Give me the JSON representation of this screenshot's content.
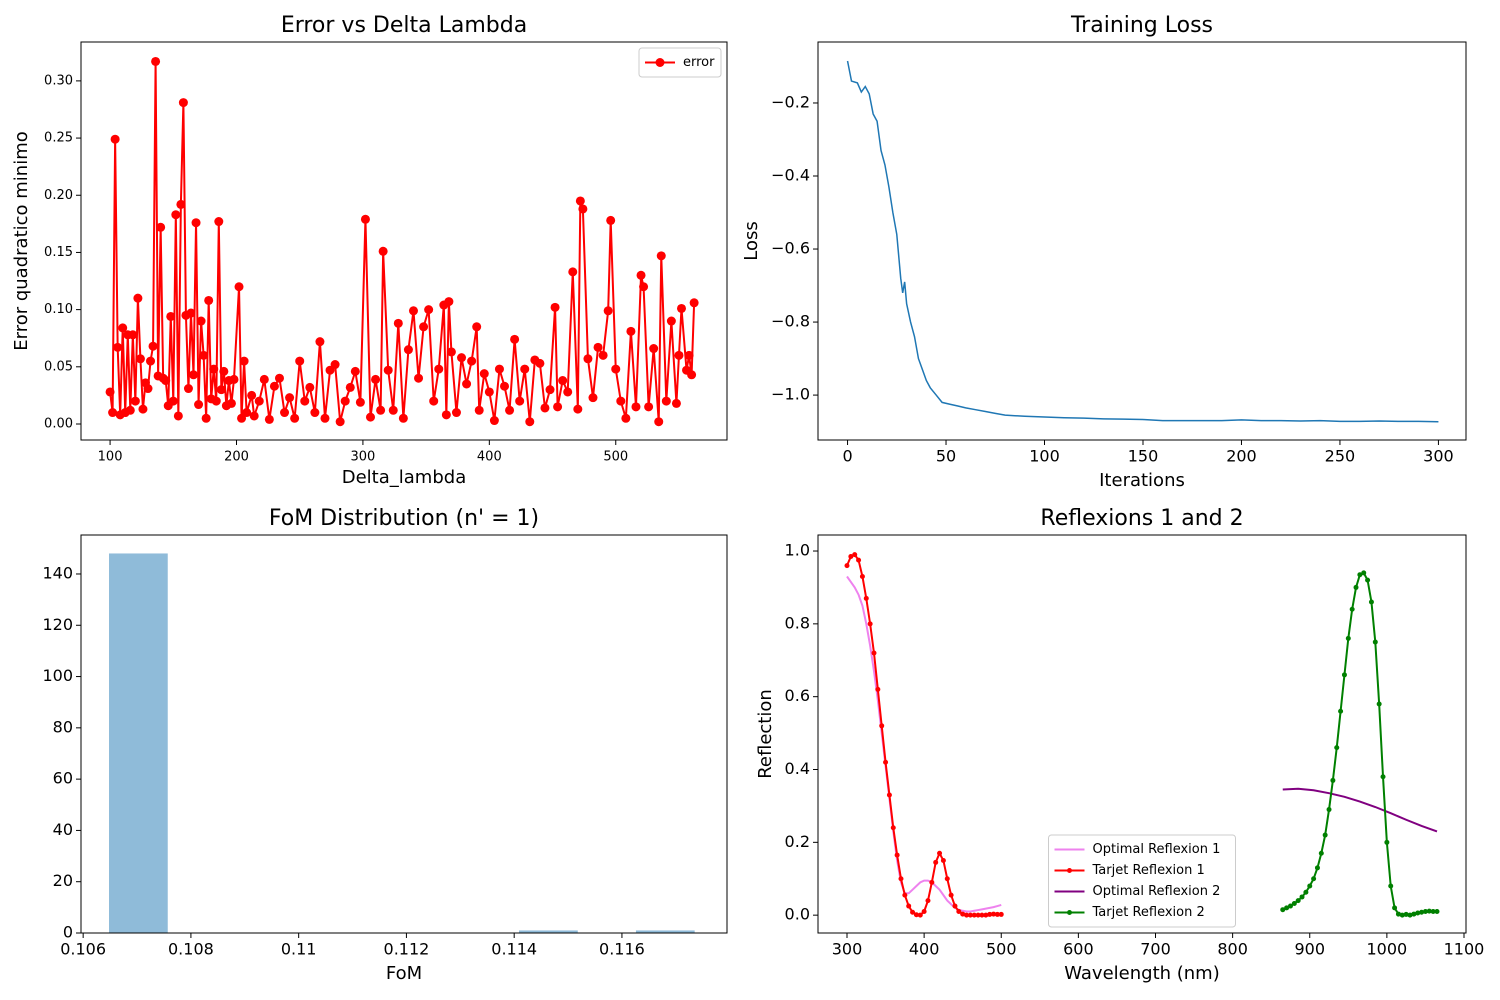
{
  "chart_data": [
    {
      "type": "line",
      "title": "Error vs Delta Lambda",
      "xlabel": "Delta_lambda",
      "ylabel": "Error quadratico minimo",
      "xlim": [
        77,
        588
      ],
      "ylim": [
        -0.014,
        0.334
      ],
      "xticks": [
        100,
        200,
        300,
        400,
        500
      ],
      "yticks": [
        {
          "value": 0,
          "label": "0.00"
        },
        0.05,
        {
          "value": 0.1,
          "label": "0.10"
        },
        0.15,
        {
          "value": 0.2,
          "label": "0.20"
        },
        0.25,
        {
          "value": 0.3,
          "label": "0.30"
        }
      ],
      "legend": "upper right",
      "x": [
        100,
        102,
        104,
        106,
        108,
        110,
        112,
        114,
        116,
        118,
        120,
        122,
        124,
        126,
        128,
        130,
        132,
        134,
        136,
        138,
        140,
        142,
        144,
        146,
        148,
        150,
        152,
        154,
        156,
        158,
        160,
        162,
        164,
        166,
        168,
        170,
        172,
        174,
        176,
        178,
        180,
        182,
        184,
        186,
        188,
        190,
        192,
        194,
        196,
        198,
        202,
        204,
        206,
        208,
        212,
        214,
        218,
        222,
        226,
        230,
        234,
        238,
        242,
        246,
        250,
        254,
        258,
        262,
        266,
        270,
        274,
        278,
        282,
        286,
        290,
        294,
        298,
        302,
        306,
        310,
        314,
        316,
        320,
        324,
        328,
        332,
        336,
        340,
        344,
        348,
        352,
        356,
        360,
        364,
        366,
        368,
        370,
        374,
        378,
        382,
        386,
        390,
        392,
        396,
        400,
        404,
        408,
        412,
        416,
        420,
        424,
        428,
        432,
        436,
        440,
        444,
        448,
        452,
        454,
        458,
        462,
        466,
        470,
        472,
        474,
        478,
        482,
        486,
        490,
        494,
        496,
        500,
        504,
        508,
        512,
        516,
        520,
        522,
        526,
        530,
        534,
        536,
        540,
        544,
        548,
        550,
        552,
        556,
        558,
        560,
        562
      ],
      "series": [
        {
          "name": "error",
          "color": "#ff0000",
          "marker": "o",
          "values": [
            0.028,
            0.01,
            0.249,
            0.067,
            0.008,
            0.084,
            0.01,
            0.078,
            0.012,
            0.078,
            0.02,
            0.11,
            0.057,
            0.013,
            0.036,
            0.031,
            0.055,
            0.068,
            0.317,
            0.042,
            0.172,
            0.04,
            0.038,
            0.016,
            0.094,
            0.02,
            0.183,
            0.007,
            0.192,
            0.281,
            0.095,
            0.031,
            0.097,
            0.043,
            0.176,
            0.017,
            0.09,
            0.06,
            0.005,
            0.108,
            0.022,
            0.048,
            0.02,
            0.177,
            0.03,
            0.046,
            0.016,
            0.038,
            0.018,
            0.039,
            0.12,
            0.005,
            0.055,
            0.01,
            0.025,
            0.007,
            0.02,
            0.039,
            0.004,
            0.033,
            0.04,
            0.01,
            0.023,
            0.005,
            0.055,
            0.02,
            0.032,
            0.01,
            0.072,
            0.005,
            0.047,
            0.052,
            0.002,
            0.02,
            0.032,
            0.046,
            0.019,
            0.179,
            0.006,
            0.039,
            0.012,
            0.151,
            0.047,
            0.012,
            0.088,
            0.005,
            0.065,
            0.099,
            0.04,
            0.085,
            0.1,
            0.02,
            0.048,
            0.104,
            0.008,
            0.107,
            0.063,
            0.01,
            0.058,
            0.035,
            0.055,
            0.085,
            0.012,
            0.044,
            0.028,
            0.003,
            0.048,
            0.033,
            0.012,
            0.074,
            0.02,
            0.048,
            0.002,
            0.056,
            0.053,
            0.014,
            0.03,
            0.102,
            0.015,
            0.038,
            0.028,
            0.133,
            0.013,
            0.195,
            0.188,
            0.057,
            0.023,
            0.067,
            0.06,
            0.099,
            0.178,
            0.048,
            0.02,
            0.005,
            0.081,
            0.015,
            0.13,
            0.12,
            0.015,
            0.066,
            0.002,
            0.147,
            0.02,
            0.09,
            0.018,
            0.06,
            0.101,
            0.047,
            0.06,
            0.043,
            0.106
          ]
        }
      ]
    },
    {
      "type": "line",
      "title": "Training Loss",
      "xlabel": "Iterations",
      "ylabel": "Loss",
      "xlim": [
        -15,
        314
      ],
      "ylim": [
        -1.123,
        -0.033
      ],
      "xticks": [
        0,
        50,
        100,
        150,
        200,
        250,
        300
      ],
      "yticks": [
        {
          "value": -0.2,
          "label": "−0.2"
        },
        {
          "value": -0.4,
          "label": "−0.4"
        },
        {
          "value": -0.6,
          "label": "−0.6"
        },
        {
          "value": -0.8,
          "label": "−0.8"
        },
        {
          "value": -1.0,
          "label": "−1.0"
        }
      ],
      "x": [
        0,
        2,
        5,
        7,
        9,
        11,
        13,
        15,
        17,
        19,
        21,
        23,
        25,
        27,
        28,
        29,
        30,
        32,
        34,
        36,
        38,
        40,
        42,
        45,
        48,
        52,
        56,
        60,
        65,
        70,
        75,
        80,
        90,
        100,
        110,
        120,
        130,
        140,
        150,
        160,
        170,
        180,
        190,
        200,
        210,
        220,
        230,
        240,
        250,
        260,
        270,
        280,
        290,
        300
      ],
      "series": [
        {
          "color": "#1f77b4",
          "values": [
            -0.085,
            -0.14,
            -0.145,
            -0.17,
            -0.155,
            -0.175,
            -0.23,
            -0.25,
            -0.33,
            -0.37,
            -0.43,
            -0.5,
            -0.56,
            -0.68,
            -0.72,
            -0.69,
            -0.75,
            -0.8,
            -0.84,
            -0.9,
            -0.93,
            -0.96,
            -0.98,
            -1.0,
            -1.02,
            -1.025,
            -1.03,
            -1.035,
            -1.04,
            -1.045,
            -1.05,
            -1.055,
            -1.058,
            -1.06,
            -1.062,
            -1.063,
            -1.065,
            -1.066,
            -1.067,
            -1.07,
            -1.07,
            -1.07,
            -1.07,
            -1.068,
            -1.07,
            -1.07,
            -1.071,
            -1.07,
            -1.072,
            -1.072,
            -1.071,
            -1.072,
            -1.072,
            -1.073
          ]
        }
      ]
    },
    {
      "type": "histogram",
      "title": "FoM Distribution (n' = 1)",
      "xlabel": "FoM",
      "xlim": [
        0.10596,
        0.11795
      ],
      "ylim": [
        0,
        155.2
      ],
      "xticks": [
        0.106,
        0.108,
        0.11,
        0.112,
        0.114,
        0.116
      ],
      "yticks": [
        0,
        20,
        40,
        60,
        80,
        100,
        120,
        140
      ],
      "bins": [
        0.10648,
        0.10757,
        0.10865,
        0.10974,
        0.11083,
        0.11192,
        0.113,
        0.11409,
        0.11518,
        0.11626,
        0.11735
      ],
      "counts": [
        148,
        0,
        0,
        0,
        0,
        0,
        0,
        1,
        0,
        1
      ],
      "color": "#8fbbd9"
    },
    {
      "type": "line",
      "title": "Reflexions 1 and 2",
      "xlabel": "Wavelength (nm)",
      "ylabel": "Reflection",
      "xlim": [
        262.4,
        1102.6
      ],
      "ylim": [
        -0.049,
        1.044
      ],
      "xticks": [
        300,
        400,
        500,
        600,
        700,
        800,
        900,
        1000,
        1100
      ],
      "yticks": [
        {
          "value": 0,
          "label": "0.0"
        },
        0.2,
        0.4,
        0.6,
        0.8,
        {
          "value": 1,
          "label": "1.0"
        }
      ],
      "legend": "lower center",
      "series": [
        {
          "name": "Optimal Reflexion 1",
          "color": "#ee82ee",
          "x": [
            300,
            305,
            310,
            315,
            320,
            325,
            330,
            335,
            340,
            345,
            350,
            355,
            360,
            365,
            370,
            375,
            380,
            385,
            390,
            395,
            400,
            405,
            410,
            415,
            420,
            425,
            430,
            435,
            440,
            445,
            450,
            455,
            460,
            465,
            470,
            475,
            480,
            485,
            490,
            495,
            500
          ],
          "values": [
            0.93,
            0.915,
            0.9,
            0.88,
            0.85,
            0.8,
            0.74,
            0.67,
            0.59,
            0.5,
            0.41,
            0.32,
            0.23,
            0.15,
            0.09,
            0.06,
            0.06,
            0.07,
            0.08,
            0.09,
            0.095,
            0.095,
            0.09,
            0.08,
            0.07,
            0.055,
            0.04,
            0.03,
            0.02,
            0.015,
            0.012,
            0.01,
            0.01,
            0.012,
            0.014,
            0.016,
            0.018,
            0.02,
            0.022,
            0.025,
            0.028
          ]
        },
        {
          "name": "Tarjet Reflexion 1",
          "color": "#ff0000",
          "marker": "o",
          "x": [
            300,
            305,
            310,
            315,
            320,
            325,
            330,
            335,
            340,
            345,
            350,
            355,
            360,
            365,
            370,
            375,
            380,
            385,
            390,
            395,
            400,
            405,
            410,
            415,
            420,
            425,
            430,
            435,
            440,
            445,
            450,
            455,
            460,
            465,
            470,
            475,
            480,
            485,
            490,
            495,
            500
          ],
          "values": [
            0.96,
            0.985,
            0.99,
            0.975,
            0.93,
            0.87,
            0.8,
            0.72,
            0.62,
            0.52,
            0.42,
            0.33,
            0.24,
            0.165,
            0.1,
            0.055,
            0.025,
            0.008,
            0.001,
            0,
            0.01,
            0.04,
            0.09,
            0.145,
            0.17,
            0.15,
            0.1,
            0.055,
            0.025,
            0.01,
            0.003,
            0,
            0,
            0,
            0,
            0,
            0,
            0.002,
            0.003,
            0.002,
            0.002
          ]
        },
        {
          "name": "Optimal Reflexion 2",
          "color": "#800080",
          "x": [
            865,
            885,
            905,
            925,
            945,
            965,
            985,
            1005,
            1025,
            1045,
            1065
          ],
          "values": [
            0.345,
            0.347,
            0.343,
            0.335,
            0.325,
            0.312,
            0.297,
            0.28,
            0.262,
            0.245,
            0.23
          ]
        },
        {
          "name": "Tarjet Reflexion 2",
          "color": "#008000",
          "marker": "o",
          "x": [
            865,
            870,
            875,
            880,
            885,
            890,
            895,
            900,
            905,
            910,
            915,
            920,
            925,
            930,
            935,
            940,
            945,
            950,
            955,
            960,
            965,
            970,
            975,
            980,
            985,
            990,
            995,
            1000,
            1005,
            1010,
            1015,
            1020,
            1025,
            1030,
            1035,
            1040,
            1045,
            1050,
            1055,
            1060,
            1065
          ],
          "values": [
            0.015,
            0.02,
            0.025,
            0.032,
            0.04,
            0.05,
            0.063,
            0.08,
            0.1,
            0.13,
            0.17,
            0.22,
            0.29,
            0.37,
            0.46,
            0.56,
            0.66,
            0.76,
            0.84,
            0.9,
            0.935,
            0.94,
            0.92,
            0.86,
            0.75,
            0.58,
            0.38,
            0.2,
            0.08,
            0.02,
            0.003,
            0,
            0.002,
            0,
            0.003,
            0.006,
            0.008,
            0.01,
            0.011,
            0.01,
            0.01
          ]
        }
      ]
    }
  ]
}
